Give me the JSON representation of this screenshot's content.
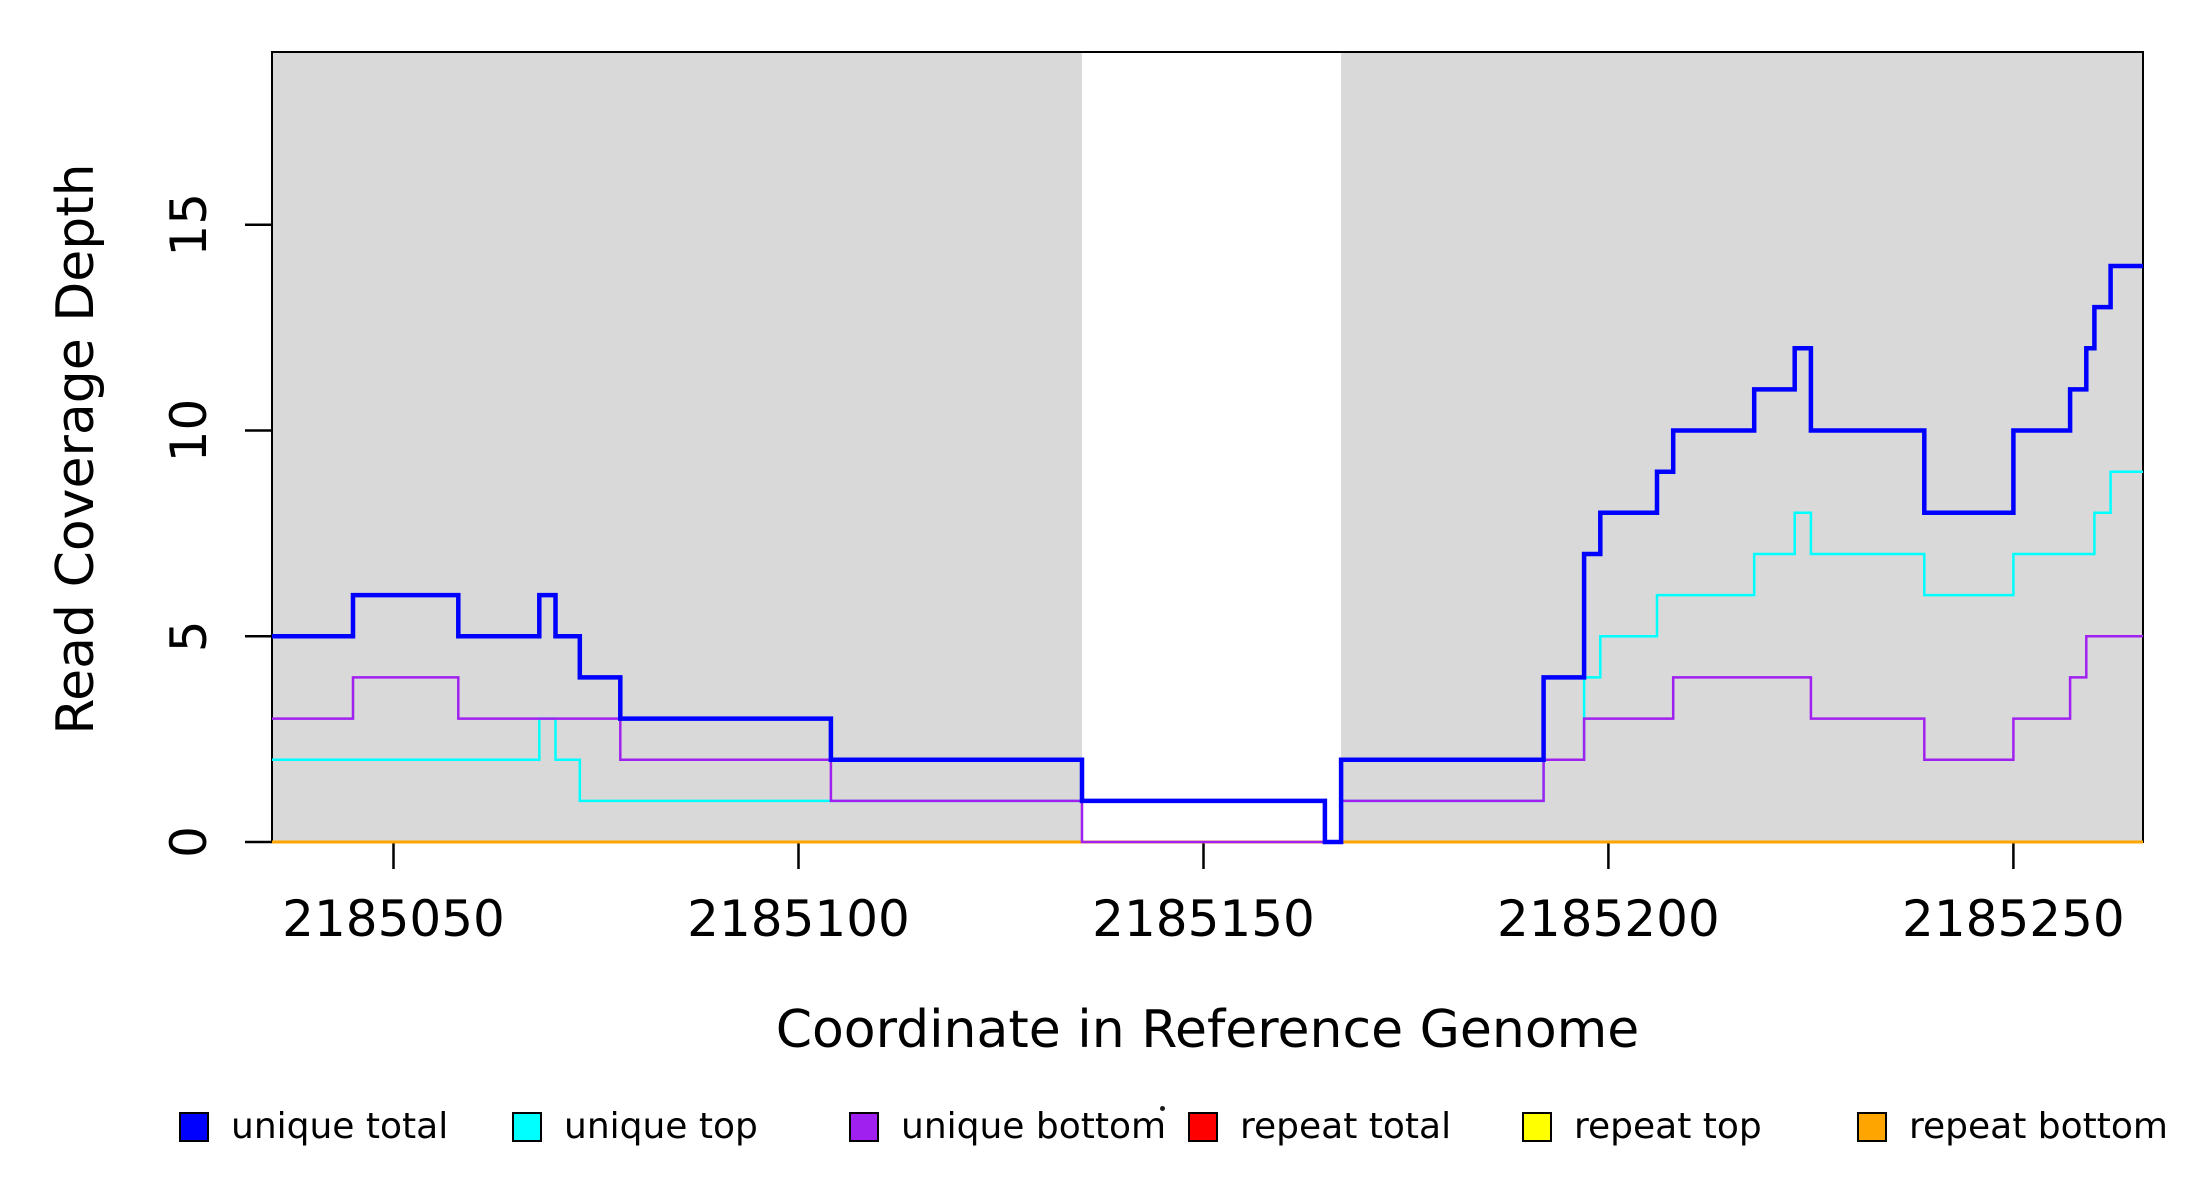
{
  "figure": {
    "background": "#FFFFFF",
    "plot_border_color": "#000000"
  },
  "chart_data": {
    "type": "line",
    "subtype": "step-coverage",
    "title": "",
    "xlabel": "Coordinate in Reference Genome",
    "ylabel": "Read Coverage Depth",
    "xlim": [
      2185035,
      2185266
    ],
    "ylim": [
      0,
      19.2
    ],
    "grid": false,
    "legend_position": "bottom",
    "x_ticks": [
      {
        "value": 2185050,
        "label": "2185050"
      },
      {
        "value": 2185100,
        "label": "2185100"
      },
      {
        "value": 2185150,
        "label": "2185150"
      },
      {
        "value": 2185200,
        "label": "2185200"
      },
      {
        "value": 2185250,
        "label": "2185250"
      }
    ],
    "y_ticks": [
      {
        "value": 0,
        "label": "0"
      },
      {
        "value": 5,
        "label": "5"
      },
      {
        "value": 10,
        "label": "10"
      },
      {
        "value": 15,
        "label": "15"
      }
    ],
    "shaded_regions": [
      {
        "name": "shaded-region-left",
        "x0": 2185035,
        "x1": 2185135,
        "color": "#D9D9D9"
      },
      {
        "name": "shaded-region-right",
        "x0": 2185167,
        "x1": 2185266,
        "color": "#D9D9D9"
      }
    ],
    "series": [
      {
        "name": "unique total",
        "color": "#0000FF",
        "width": 4.5,
        "points": [
          [
            2185035,
            5
          ],
          [
            2185045,
            6
          ],
          [
            2185058,
            5
          ],
          [
            2185068,
            6
          ],
          [
            2185070,
            5
          ],
          [
            2185073,
            4
          ],
          [
            2185078,
            3
          ],
          [
            2185104,
            2
          ],
          [
            2185135,
            1
          ],
          [
            2185165,
            0
          ],
          [
            2185167,
            2
          ],
          [
            2185192,
            4
          ],
          [
            2185197,
            7
          ],
          [
            2185199,
            8
          ],
          [
            2185206,
            9
          ],
          [
            2185208,
            10
          ],
          [
            2185218,
            11
          ],
          [
            2185223,
            12
          ],
          [
            2185225,
            10
          ],
          [
            2185239,
            8
          ],
          [
            2185250,
            10
          ],
          [
            2185257,
            11
          ],
          [
            2185259,
            12
          ],
          [
            2185260,
            13
          ],
          [
            2185262,
            14
          ]
        ]
      },
      {
        "name": "unique top",
        "color": "#00FFFF",
        "width": 2.5,
        "points": [
          [
            2185035,
            2
          ],
          [
            2185068,
            3
          ],
          [
            2185070,
            2
          ],
          [
            2185073,
            1
          ],
          [
            2185165,
            0
          ],
          [
            2185167,
            1
          ],
          [
            2185192,
            2
          ],
          [
            2185197,
            4
          ],
          [
            2185199,
            5
          ],
          [
            2185206,
            6
          ],
          [
            2185218,
            7
          ],
          [
            2185223,
            8
          ],
          [
            2185225,
            7
          ],
          [
            2185239,
            6
          ],
          [
            2185250,
            7
          ],
          [
            2185260,
            8
          ],
          [
            2185262,
            9
          ]
        ]
      },
      {
        "name": "unique bottom",
        "color": "#A020F0",
        "width": 2.5,
        "points": [
          [
            2185035,
            3
          ],
          [
            2185045,
            4
          ],
          [
            2185058,
            3
          ],
          [
            2185078,
            2
          ],
          [
            2185104,
            1
          ],
          [
            2185135,
            0
          ],
          [
            2185167,
            1
          ],
          [
            2185192,
            2
          ],
          [
            2185197,
            3
          ],
          [
            2185208,
            4
          ],
          [
            2185225,
            3
          ],
          [
            2185239,
            2
          ],
          [
            2185250,
            3
          ],
          [
            2185257,
            4
          ],
          [
            2185259,
            5
          ]
        ]
      },
      {
        "name": "repeat total",
        "color": "#FF0000",
        "width": 2.5,
        "points": [
          [
            2185035,
            0
          ]
        ]
      },
      {
        "name": "repeat top",
        "color": "#FFFF00",
        "width": 2.5,
        "points": [
          [
            2185035,
            0
          ]
        ]
      },
      {
        "name": "repeat bottom",
        "color": "#FFA500",
        "width": 3,
        "points": [
          [
            2185035,
            0
          ]
        ]
      }
    ],
    "draw_order": [
      3,
      4,
      5,
      1,
      2,
      0
    ],
    "stray_mark": "·"
  }
}
